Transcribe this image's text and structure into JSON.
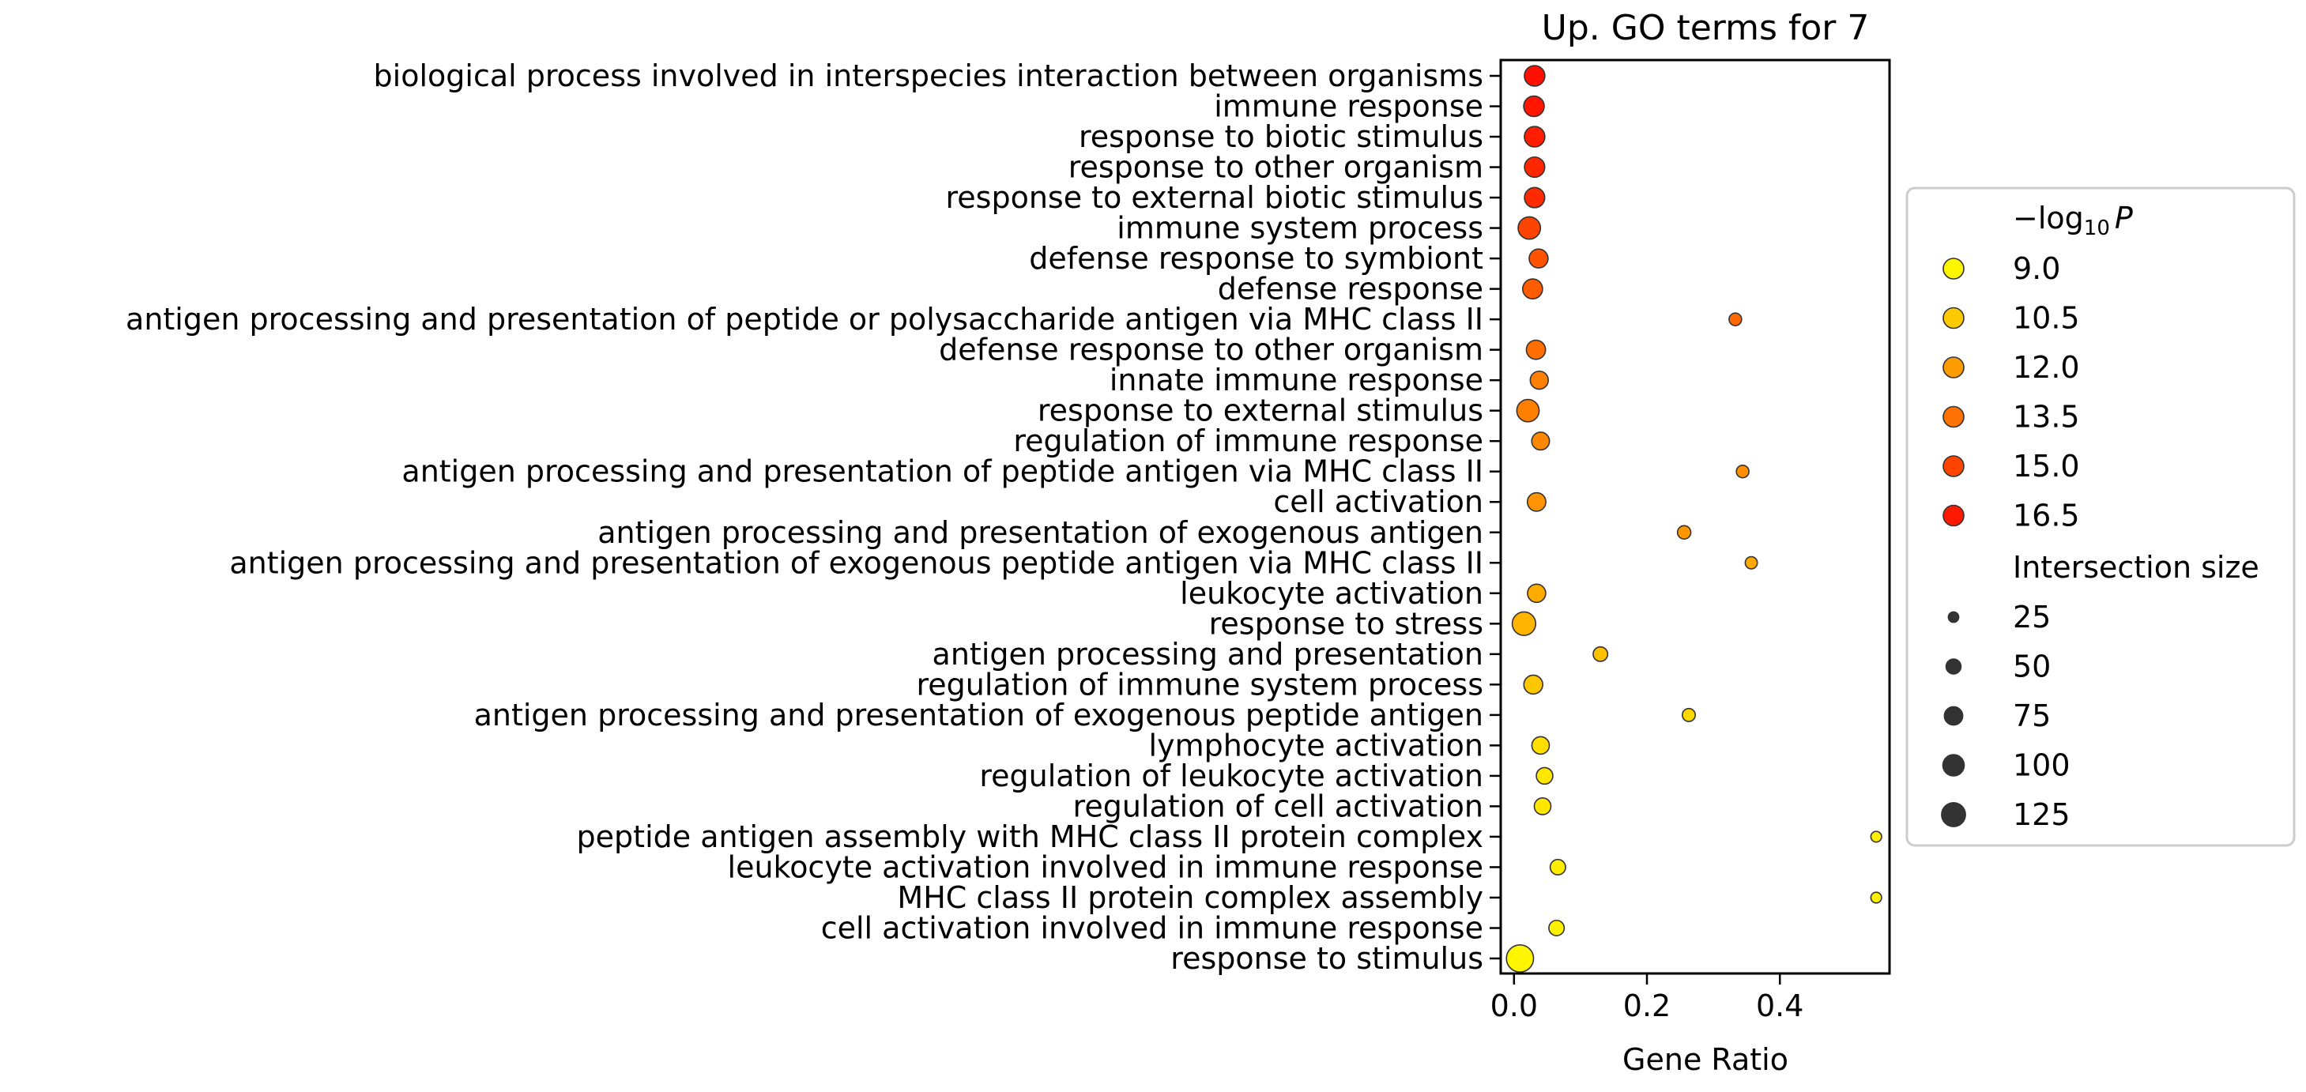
{
  "chart_data": {
    "type": "scatter",
    "title": "Up. GO terms for 7",
    "xlabel": "Gene Ratio",
    "ylabel": "",
    "xlim": [
      -0.02,
      0.565
    ],
    "xticks": [
      0.0,
      0.2,
      0.4
    ],
    "xtick_labels": [
      "0.0",
      "0.2",
      "0.4"
    ],
    "grid": false,
    "legend_position": "right",
    "colormap": {
      "low_color": "#ffff00",
      "high_color": "#ff0000",
      "vmin": 8.7,
      "vmax": 17.3
    },
    "points": [
      {
        "term": "biological process involved in interspecies interaction between organisms",
        "gene_ratio": 0.031,
        "neg_log10_p": 16.8,
        "intersection_size": 80
      },
      {
        "term": "immune response",
        "gene_ratio": 0.03,
        "neg_log10_p": 16.6,
        "intersection_size": 80
      },
      {
        "term": "response to biotic stimulus",
        "gene_ratio": 0.031,
        "neg_log10_p": 16.3,
        "intersection_size": 80
      },
      {
        "term": "response to other organism",
        "gene_ratio": 0.031,
        "neg_log10_p": 16.0,
        "intersection_size": 78
      },
      {
        "term": "response to external biotic stimulus",
        "gene_ratio": 0.031,
        "neg_log10_p": 15.9,
        "intersection_size": 78
      },
      {
        "term": "immune system process",
        "gene_ratio": 0.023,
        "neg_log10_p": 15.0,
        "intersection_size": 95
      },
      {
        "term": "defense response to symbiont",
        "gene_ratio": 0.037,
        "neg_log10_p": 14.5,
        "intersection_size": 68
      },
      {
        "term": "defense response",
        "gene_ratio": 0.028,
        "neg_log10_p": 14.2,
        "intersection_size": 75
      },
      {
        "term": "antigen processing and presentation of peptide or polysaccharide antigen via MHC class II",
        "gene_ratio": 0.333,
        "neg_log10_p": 13.8,
        "intersection_size": 30
      },
      {
        "term": "defense response to other organism",
        "gene_ratio": 0.033,
        "neg_log10_p": 13.6,
        "intersection_size": 70
      },
      {
        "term": "innate immune response",
        "gene_ratio": 0.038,
        "neg_log10_p": 13.0,
        "intersection_size": 62
      },
      {
        "term": "response to external stimulus",
        "gene_ratio": 0.021,
        "neg_log10_p": 13.0,
        "intersection_size": 95
      },
      {
        "term": "regulation of immune response",
        "gene_ratio": 0.04,
        "neg_log10_p": 12.7,
        "intersection_size": 60
      },
      {
        "term": "antigen processing and presentation of peptide antigen via MHC class II",
        "gene_ratio": 0.344,
        "neg_log10_p": 12.5,
        "intersection_size": 30
      },
      {
        "term": "cell activation",
        "gene_ratio": 0.034,
        "neg_log10_p": 12.3,
        "intersection_size": 65
      },
      {
        "term": "antigen processing and presentation of exogenous antigen",
        "gene_ratio": 0.256,
        "neg_log10_p": 12.2,
        "intersection_size": 34
      },
      {
        "term": "antigen processing and presentation of exogenous peptide antigen via MHC class II",
        "gene_ratio": 0.357,
        "neg_log10_p": 11.6,
        "intersection_size": 28
      },
      {
        "term": "leukocyte activation",
        "gene_ratio": 0.034,
        "neg_log10_p": 11.5,
        "intersection_size": 63
      },
      {
        "term": "response to stress",
        "gene_ratio": 0.015,
        "neg_log10_p": 11.2,
        "intersection_size": 105
      },
      {
        "term": "antigen processing and presentation",
        "gene_ratio": 0.13,
        "neg_log10_p": 10.8,
        "intersection_size": 40
      },
      {
        "term": "regulation of immune system process",
        "gene_ratio": 0.029,
        "neg_log10_p": 10.6,
        "intersection_size": 68
      },
      {
        "term": "antigen processing and presentation of exogenous peptide antigen",
        "gene_ratio": 0.263,
        "neg_log10_p": 10.0,
        "intersection_size": 32
      },
      {
        "term": "lymphocyte activation",
        "gene_ratio": 0.04,
        "neg_log10_p": 9.8,
        "intersection_size": 58
      },
      {
        "term": "regulation of leukocyte activation",
        "gene_ratio": 0.046,
        "neg_log10_p": 9.5,
        "intersection_size": 52
      },
      {
        "term": "regulation of cell activation",
        "gene_ratio": 0.043,
        "neg_log10_p": 9.5,
        "intersection_size": 53
      },
      {
        "term": "peptide antigen assembly with MHC class II protein complex",
        "gene_ratio": 0.545,
        "neg_log10_p": 9.3,
        "intersection_size": 22
      },
      {
        "term": "leukocyte activation involved in immune response",
        "gene_ratio": 0.066,
        "neg_log10_p": 9.3,
        "intersection_size": 45
      },
      {
        "term": "MHC class II protein complex assembly",
        "gene_ratio": 0.545,
        "neg_log10_p": 9.2,
        "intersection_size": 22
      },
      {
        "term": "cell activation involved in immune response",
        "gene_ratio": 0.064,
        "neg_log10_p": 9.2,
        "intersection_size": 45
      },
      {
        "term": "response to stimulus",
        "gene_ratio": 0.009,
        "neg_log10_p": 9.0,
        "intersection_size": 140
      }
    ],
    "legend": {
      "color_title_prefix": "−log",
      "color_title_sub": "10",
      "color_title_suffix": "P",
      "color_entries": [
        {
          "label": "9.0",
          "value": 9.0
        },
        {
          "label": "10.5",
          "value": 10.5
        },
        {
          "label": "12.0",
          "value": 12.0
        },
        {
          "label": "13.5",
          "value": 13.5
        },
        {
          "label": "15.0",
          "value": 15.0
        },
        {
          "label": "16.5",
          "value": 16.5
        }
      ],
      "size_title": "Intersection size",
      "size_entries": [
        {
          "label": "25",
          "value": 25
        },
        {
          "label": "50",
          "value": 50
        },
        {
          "label": "75",
          "value": 75
        },
        {
          "label": "100",
          "value": 100
        },
        {
          "label": "125",
          "value": 125
        }
      ]
    }
  }
}
